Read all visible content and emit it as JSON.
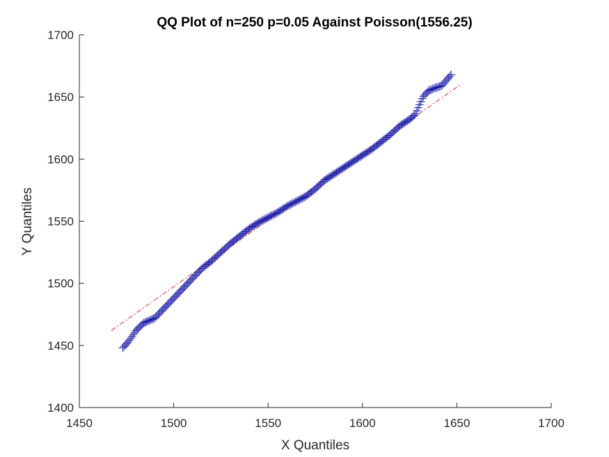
{
  "chart_data": {
    "type": "scatter",
    "title": "QQ Plot of n=250 p=0.05 Against Poisson(1556.25)",
    "xlabel": "X Quantiles",
    "ylabel": "Y Quantiles",
    "xlim": [
      1450,
      1700
    ],
    "ylim": [
      1400,
      1700
    ],
    "xticks": [
      1450,
      1500,
      1550,
      1600,
      1650,
      1700
    ],
    "yticks": [
      1400,
      1450,
      1500,
      1550,
      1600,
      1650,
      1700
    ],
    "xtick_labels": [
      "1450",
      "1500",
      "1550",
      "1600",
      "1650",
      "1700"
    ],
    "ytick_labels": [
      "1400",
      "1450",
      "1500",
      "1550",
      "1600",
      "1650",
      "1700"
    ],
    "grid": false,
    "marker": "+",
    "marker_color": "#1f1fa8",
    "reference_line": {
      "style": "dash-dot",
      "color": "#e02020",
      "x": [
        1467,
        1652
      ],
      "y": [
        1462,
        1660
      ]
    },
    "x_range": [
      1473,
      1647
    ],
    "y_range": [
      1448,
      1668
    ],
    "n_points": 250,
    "profile": [
      [
        1473,
        1448
      ],
      [
        1476,
        1453
      ],
      [
        1480,
        1462
      ],
      [
        1484,
        1468
      ],
      [
        1490,
        1472
      ],
      [
        1495,
        1480
      ],
      [
        1500,
        1488
      ],
      [
        1505,
        1496
      ],
      [
        1510,
        1504
      ],
      [
        1515,
        1512
      ],
      [
        1520,
        1518
      ],
      [
        1525,
        1525
      ],
      [
        1530,
        1532
      ],
      [
        1535,
        1538
      ],
      [
        1540,
        1544
      ],
      [
        1545,
        1549
      ],
      [
        1550,
        1553
      ],
      [
        1555,
        1557
      ],
      [
        1560,
        1562
      ],
      [
        1565,
        1566
      ],
      [
        1570,
        1570
      ],
      [
        1575,
        1576
      ],
      [
        1580,
        1583
      ],
      [
        1585,
        1588
      ],
      [
        1590,
        1593
      ],
      [
        1595,
        1598
      ],
      [
        1600,
        1603
      ],
      [
        1605,
        1608
      ],
      [
        1610,
        1614
      ],
      [
        1615,
        1620
      ],
      [
        1620,
        1627
      ],
      [
        1625,
        1632
      ],
      [
        1628,
        1636
      ],
      [
        1630,
        1643
      ],
      [
        1632,
        1650
      ],
      [
        1635,
        1655
      ],
      [
        1638,
        1657
      ],
      [
        1642,
        1659
      ],
      [
        1647,
        1668
      ]
    ]
  }
}
